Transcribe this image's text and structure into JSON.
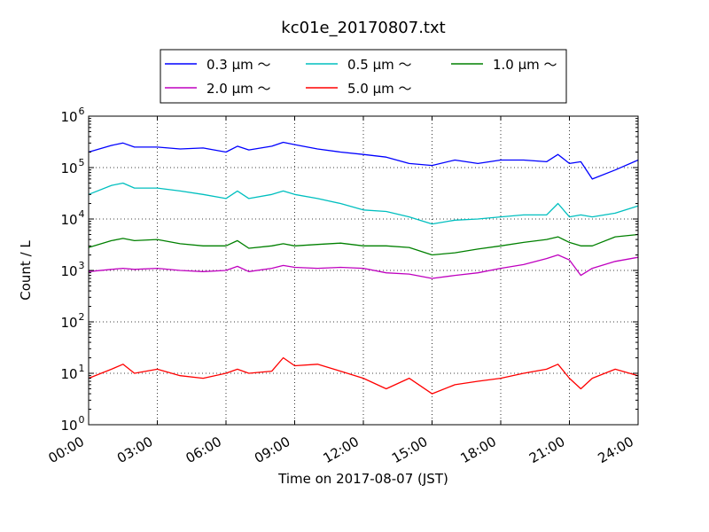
{
  "chart_data": {
    "type": "line",
    "title": "kc01e_20170807.txt",
    "xlabel": "Time on 2017-08-07 (JST)",
    "ylabel": "Count / L",
    "yscale": "log",
    "ylim": [
      1,
      1000000
    ],
    "xlim_hours": [
      0,
      24
    ],
    "grid": true,
    "legend_position": "top-center",
    "x_ticks": [
      "00:00",
      "03:00",
      "06:00",
      "09:00",
      "12:00",
      "15:00",
      "18:00",
      "21:00",
      "24:00"
    ],
    "y_ticks": [
      {
        "value": 1,
        "base": "10",
        "exp": "0"
      },
      {
        "value": 10,
        "base": "10",
        "exp": "1"
      },
      {
        "value": 100,
        "base": "10",
        "exp": "2"
      },
      {
        "value": 1000,
        "base": "10",
        "exp": "3"
      },
      {
        "value": 10000,
        "base": "10",
        "exp": "4"
      },
      {
        "value": 100000,
        "base": "10",
        "exp": "5"
      },
      {
        "value": 1000000,
        "base": "10",
        "exp": "6"
      }
    ],
    "x_hours": [
      0.0,
      1.0,
      1.5,
      2.0,
      3.0,
      4.0,
      5.0,
      6.0,
      6.5,
      7.0,
      8.0,
      8.5,
      9.0,
      10.0,
      11.0,
      12.0,
      13.0,
      14.0,
      15.0,
      16.0,
      17.0,
      18.0,
      19.0,
      20.0,
      20.5,
      21.0,
      21.5,
      22.0,
      23.0,
      24.0
    ],
    "series": [
      {
        "name": "0.3 μm ～",
        "color": "#0000ff",
        "values": [
          200000,
          270000,
          300000,
          250000,
          250000,
          230000,
          240000,
          200000,
          260000,
          220000,
          260000,
          310000,
          280000,
          230000,
          200000,
          180000,
          160000,
          120000,
          110000,
          140000,
          120000,
          140000,
          140000,
          130000,
          180000,
          120000,
          130000,
          60000,
          90000,
          140000
        ]
      },
      {
        "name": "0.5 μm ～",
        "color": "#00bfbf",
        "values": [
          30000,
          45000,
          50000,
          40000,
          40000,
          35000,
          30000,
          25000,
          35000,
          25000,
          30000,
          35000,
          30000,
          25000,
          20000,
          15000,
          14000,
          11000,
          8000,
          9500,
          10000,
          11000,
          12000,
          12000,
          20000,
          11000,
          12000,
          11000,
          13000,
          18000
        ]
      },
      {
        "name": "1.0 μm ～",
        "color": "#008000",
        "values": [
          2800,
          3800,
          4200,
          3800,
          4000,
          3300,
          3000,
          3000,
          3800,
          2700,
          3000,
          3300,
          3000,
          3200,
          3400,
          3000,
          3000,
          2800,
          2000,
          2200,
          2600,
          3000,
          3500,
          4000,
          4500,
          3500,
          3000,
          3000,
          4500,
          5000
        ]
      },
      {
        "name": "2.0 μm ～",
        "color": "#bf00bf",
        "values": [
          950,
          1050,
          1100,
          1050,
          1100,
          1000,
          950,
          1000,
          1200,
          950,
          1100,
          1250,
          1150,
          1100,
          1150,
          1100,
          900,
          850,
          700,
          800,
          900,
          1100,
          1300,
          1700,
          2000,
          1600,
          800,
          1100,
          1500,
          1800
        ]
      },
      {
        "name": "5.0 μm ～",
        "color": "#ff0000",
        "values": [
          8,
          12,
          15,
          10,
          12,
          9,
          8,
          10,
          12,
          10,
          11,
          20,
          14,
          15,
          11,
          8,
          5,
          8,
          4,
          6,
          7,
          8,
          10,
          12,
          15,
          8,
          5,
          8,
          12,
          9
        ]
      }
    ]
  }
}
